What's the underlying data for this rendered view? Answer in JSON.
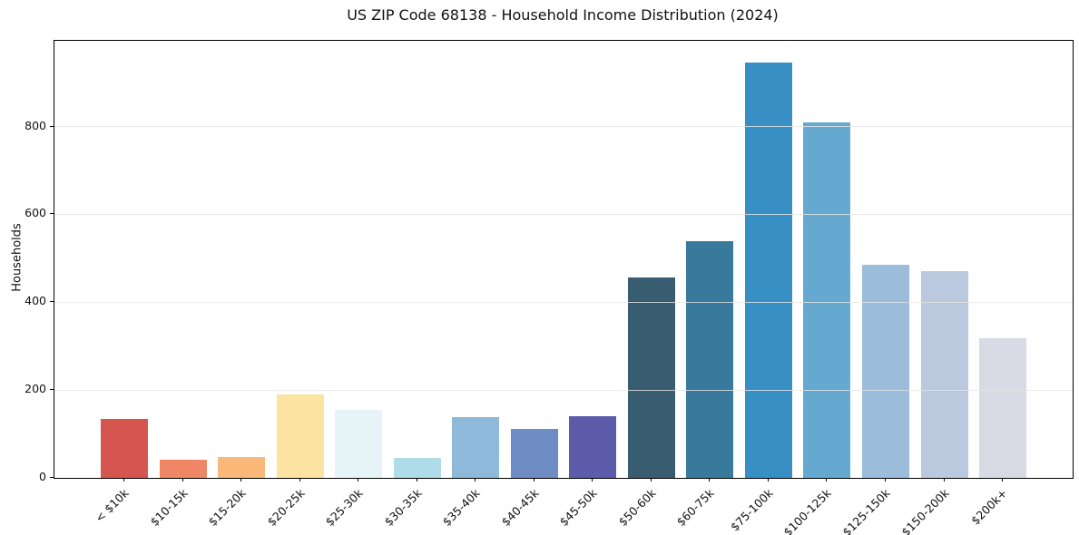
{
  "figure": {
    "background": "#ffffff",
    "spine_color": "#000000"
  },
  "chart_data": {
    "type": "bar",
    "title": "US ZIP Code 68138 - Household Income Distribution (2024)",
    "xlabel": "",
    "ylabel": "Households",
    "categories": [
      "< $10k",
      "$10-15k",
      "$15-20k",
      "$20-25k",
      "$25-30k",
      "$30-35k",
      "$35-40k",
      "$40-45k",
      "$45-50k",
      "$50-60k",
      "$60-75k",
      "$75-100k",
      "$100-125k",
      "$125-150k",
      "$150-200k",
      "$200k+"
    ],
    "values": [
      135,
      41,
      47,
      190,
      155,
      45,
      138,
      112,
      140,
      457,
      538,
      945,
      810,
      486,
      471,
      318
    ],
    "bar_colors": [
      "#d5564f",
      "#ef8766",
      "#fab87b",
      "#fde3a1",
      "#e6f3f7",
      "#aedce9",
      "#8fb9da",
      "#6d8dc4",
      "#5c5cab",
      "#395d70",
      "#38799c",
      "#388fc4",
      "#66a9d0",
      "#9bbcdb",
      "#bac9de",
      "#d9dae6"
    ],
    "ylim": [
      0,
      995
    ],
    "yticks": [
      0,
      200,
      400,
      600,
      800
    ],
    "grid": "horizontal",
    "grid_color": "#e6e6e6",
    "legend": "none"
  }
}
